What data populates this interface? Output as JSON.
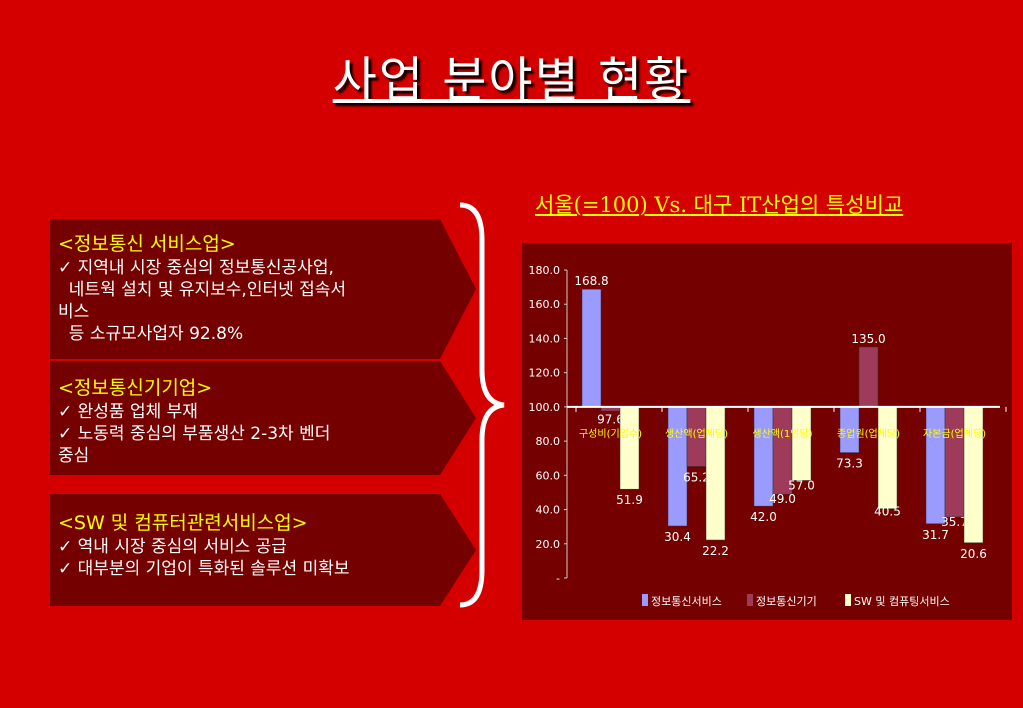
{
  "title": "사업 분야별 현황",
  "panels": [
    {
      "heading": "<정보통신 서비스업>",
      "lines": [
        "✓ 지역내 시장 중심의 정보통신공사업,",
        "  네트웍 설치 및 유지보수,인터넷 접속서",
        "비스",
        "  등 소규모사업자 92.8%"
      ]
    },
    {
      "heading": "<정보통신기기업>",
      "lines": [
        "✓ 완성품 업체 부재",
        "✓ 노동력 중심의 부품생산 2-3차 벤더",
        "중심"
      ]
    },
    {
      "heading": "<SW 및 컴퓨터관련서비스업>",
      "lines": [
        "✓ 역내 시장 중심의 서비스 공급",
        "✓ 대부분의 기업이 특화된 솔루션 미확보"
      ]
    }
  ],
  "chart_title": "서울(=100) Vs. 대구 IT산업의 특성비교",
  "colors": {
    "background": "#d40000",
    "panel": "#750000",
    "series1": "#9a9aff",
    "series2": "#9e3a5a",
    "series3": "#ffffcc",
    "accent_text": "#ffff00"
  },
  "chart_data": {
    "type": "bar",
    "categories": [
      "구성비(기업수)",
      "생산액(업체당)",
      "생산액(1인당)",
      "종업원(업체당)",
      "자본금(업체당)"
    ],
    "series": [
      {
        "name": "정보통신서비스",
        "values": [
          168.8,
          30.4,
          42.0,
          73.3,
          31.7
        ]
      },
      {
        "name": "정보통신기기",
        "values": [
          97.6,
          65.2,
          49.0,
          135.0,
          35.7
        ]
      },
      {
        "name": "SW 및 컴퓨팅서비스",
        "values": [
          51.9,
          22.2,
          57.0,
          40.5,
          20.6
        ]
      }
    ],
    "baseline": 100,
    "ylim": [
      0,
      180
    ],
    "yticks": [
      "-",
      "20.0",
      "40.0",
      "60.0",
      "80.0",
      "100.0",
      "120.0",
      "140.0",
      "160.0",
      "180.0"
    ],
    "legend_position": "bottom"
  }
}
